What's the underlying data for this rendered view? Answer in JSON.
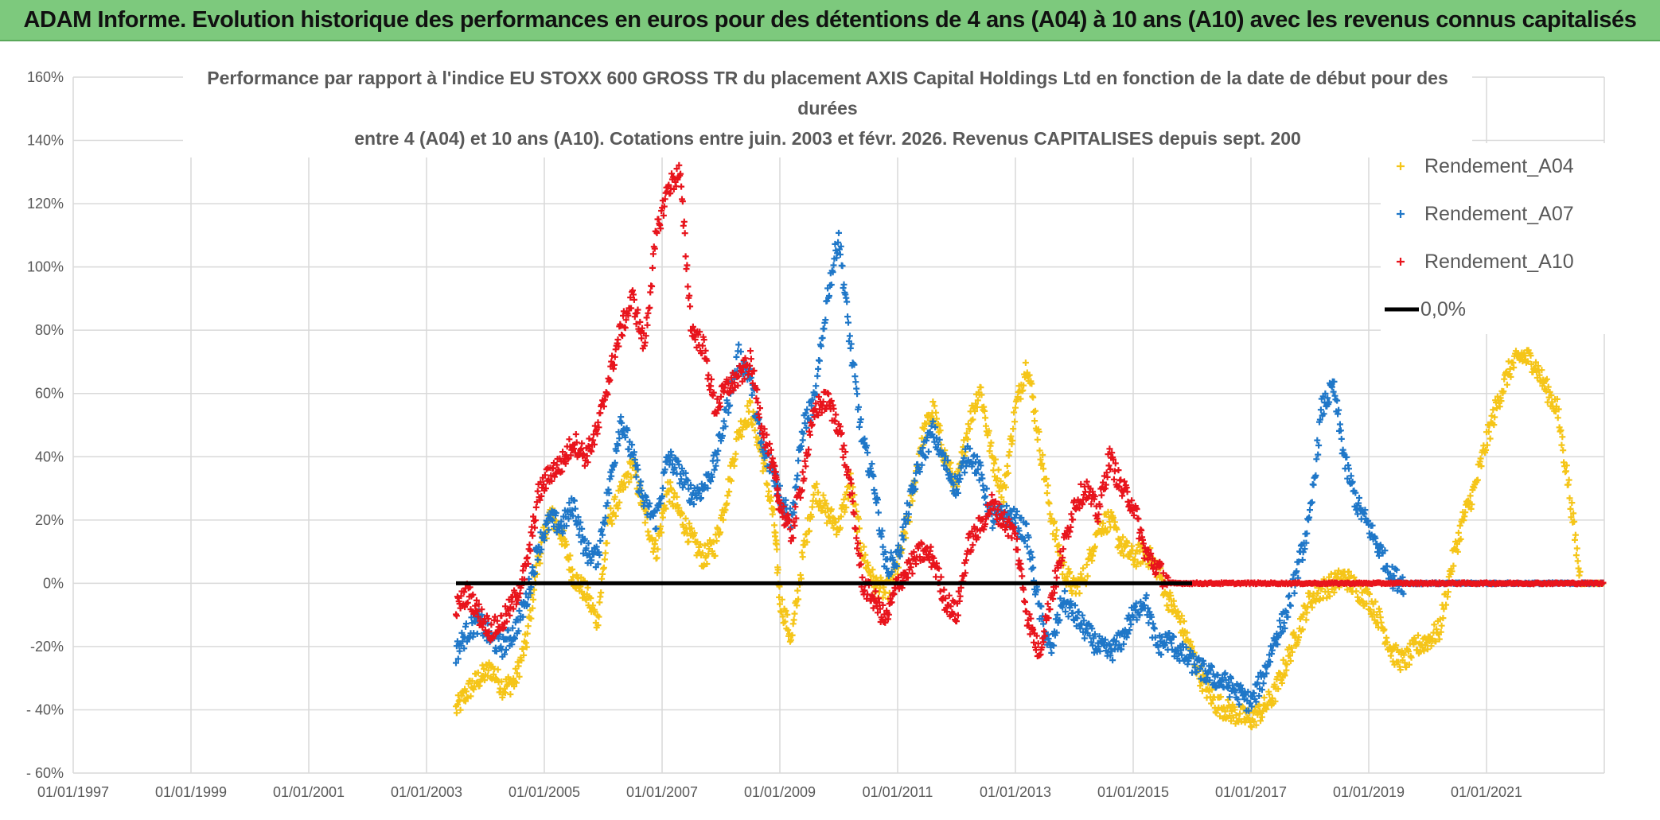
{
  "header": {
    "banner_text": "ADAM Informe. Evolution historique des performances en euros pour des détentions de 4 ans (A04) à 10 ans (A10) avec les revenus connus capitalisés"
  },
  "colors": {
    "banner_bg": "#7dc97d",
    "A04": "#f5c518",
    "A07": "#1f77c8",
    "A10": "#e8141c",
    "zero": "#000000",
    "grid": "#d9d9d9"
  },
  "chart_data": {
    "type": "scatter",
    "title_lines": [
      "Performance par rapport à l'indice EU STOXX 600 GROSS TR  du placement AXIS Capital Holdings Ltd en fonction de la date de début pour des",
      "durées",
      "entre 4 (A04) et 10 ans (A10). Cotations entre juin. 2003 et févr. 2026. Revenus CAPITALISES depuis sept. 200"
    ],
    "xlabel": "",
    "ylabel": "",
    "xlim": [
      1997.0,
      2023.0
    ],
    "ylim": [
      -60,
      160
    ],
    "grid": true,
    "legend_position": "top-right",
    "x_ticks": [
      "01/01/1997",
      "01/01/1999",
      "01/01/2001",
      "01/01/2003",
      "01/01/2005",
      "01/01/2007",
      "01/01/2009",
      "01/01/2011",
      "01/01/2013",
      "01/01/2015",
      "01/01/2017",
      "01/01/2019",
      "01/01/2021"
    ],
    "x_tick_values": [
      1997,
      1999,
      2001,
      2003,
      2005,
      2007,
      2009,
      2011,
      2013,
      2015,
      2017,
      2019,
      2021
    ],
    "y_ticks": [
      "- 60%",
      "- 40%",
      "-20%",
      "0%",
      "20%",
      "40%",
      "60%",
      "80%",
      "100%",
      "120%",
      "140%",
      "160%"
    ],
    "y_tick_values": [
      -60,
      -40,
      -20,
      0,
      20,
      40,
      60,
      80,
      100,
      120,
      140,
      160
    ],
    "series": [
      {
        "name": "Rendement_A04",
        "marker": "+",
        "x": [
          2003.5,
          2003.7,
          2003.9,
          2004.1,
          2004.3,
          2004.5,
          2004.7,
          2004.9,
          2005.1,
          2005.3,
          2005.5,
          2005.7,
          2005.9,
          2006.1,
          2006.3,
          2006.5,
          2006.7,
          2006.9,
          2007.1,
          2007.3,
          2007.5,
          2007.7,
          2007.9,
          2008.1,
          2008.3,
          2008.5,
          2008.7,
          2008.9,
          2009.0,
          2009.2,
          2009.4,
          2009.6,
          2009.8,
          2010.0,
          2010.2,
          2010.4,
          2010.6,
          2010.8,
          2011.0,
          2011.2,
          2011.4,
          2011.6,
          2011.8,
          2012.0,
          2012.2,
          2012.4,
          2012.6,
          2012.8,
          2013.0,
          2013.2,
          2013.4,
          2013.6,
          2013.8,
          2014.0,
          2014.2,
          2014.4,
          2014.6,
          2014.8,
          2015.0,
          2015.2,
          2015.4,
          2015.6,
          2015.8,
          2016.0,
          2016.2,
          2016.4,
          2016.6,
          2016.8,
          2017.0,
          2017.2,
          2017.4,
          2017.6,
          2017.8,
          2018.0,
          2018.2,
          2018.4,
          2018.6,
          2018.8,
          2019.0,
          2019.2,
          2019.4,
          2019.6,
          2019.8,
          2020.0,
          2020.2,
          2020.4,
          2020.6,
          2020.8,
          2021.0,
          2021.2,
          2021.4,
          2021.6,
          2021.8,
          2022.0,
          2022.2,
          2022.4,
          2022.6,
          2022.8
        ],
        "y": [
          -40,
          -34,
          -30,
          -27,
          -33,
          -31,
          -18,
          8,
          22,
          15,
          2,
          -3,
          -12,
          20,
          28,
          38,
          22,
          10,
          30,
          22,
          14,
          8,
          12,
          28,
          48,
          55,
          40,
          20,
          -5,
          -18,
          10,
          30,
          22,
          18,
          32,
          10,
          0,
          -3,
          5,
          22,
          45,
          55,
          40,
          30,
          50,
          62,
          40,
          28,
          55,
          70,
          45,
          22,
          5,
          -2,
          3,
          18,
          20,
          12,
          8,
          10,
          5,
          -5,
          -12,
          -22,
          -32,
          -38,
          -40,
          -42,
          -43,
          -40,
          -35,
          -25,
          -15,
          -5,
          -2,
          0,
          2,
          -2,
          -5,
          -12,
          -22,
          -25,
          -20,
          -18,
          -15,
          5,
          20,
          30,
          45,
          58,
          68,
          72,
          70,
          62,
          55,
          30,
          0,
          0
        ]
      },
      {
        "name": "Rendement_A07",
        "marker": "+",
        "x": [
          2003.5,
          2003.7,
          2003.9,
          2004.1,
          2004.3,
          2004.5,
          2004.7,
          2004.9,
          2005.1,
          2005.3,
          2005.5,
          2005.7,
          2005.9,
          2006.1,
          2006.3,
          2006.5,
          2006.7,
          2006.9,
          2007.1,
          2007.3,
          2007.5,
          2007.7,
          2007.9,
          2008.1,
          2008.3,
          2008.5,
          2008.7,
          2008.9,
          2009.0,
          2009.2,
          2009.4,
          2009.6,
          2009.8,
          2010.0,
          2010.2,
          2010.4,
          2010.6,
          2010.8,
          2011.0,
          2011.2,
          2011.4,
          2011.6,
          2011.8,
          2012.0,
          2012.2,
          2012.4,
          2012.6,
          2012.8,
          2013.0,
          2013.2,
          2013.4,
          2013.6,
          2013.8,
          2014.0,
          2014.2,
          2014.4,
          2014.6,
          2014.8,
          2015.0,
          2015.2,
          2015.4,
          2015.6,
          2015.8,
          2016.0,
          2016.2,
          2016.4,
          2016.6,
          2016.8,
          2017.0,
          2017.2,
          2017.4,
          2017.6,
          2017.8,
          2018.0,
          2018.2,
          2018.4,
          2018.6,
          2018.8,
          2019.0,
          2019.2,
          2019.4,
          2019.6,
          2019.8,
          2020.0,
          2020.2,
          2020.4,
          2020.6,
          2020.8,
          2021.0,
          2021.2,
          2021.4,
          2021.6,
          2021.8,
          2022.0,
          2022.2,
          2022.4,
          2022.6,
          2022.8
        ],
        "y": [
          -22,
          -15,
          -12,
          -18,
          -20,
          -15,
          -5,
          12,
          20,
          18,
          25,
          10,
          8,
          30,
          52,
          40,
          25,
          20,
          40,
          35,
          28,
          30,
          38,
          55,
          72,
          65,
          42,
          35,
          28,
          20,
          50,
          58,
          90,
          110,
          75,
          45,
          32,
          5,
          8,
          25,
          40,
          48,
          38,
          30,
          42,
          35,
          20,
          22,
          20,
          15,
          -8,
          -22,
          -5,
          -10,
          -15,
          -20,
          -22,
          -18,
          -10,
          -5,
          -20,
          -18,
          -22,
          -25,
          -28,
          -30,
          -32,
          -35,
          -38,
          -30,
          -18,
          -10,
          5,
          20,
          55,
          62,
          38,
          25,
          18,
          10,
          2,
          0,
          0,
          0,
          0,
          0,
          0,
          0,
          0,
          0,
          0,
          0,
          0,
          0,
          0,
          0,
          0,
          0
        ]
      },
      {
        "name": "Rendement_A10",
        "marker": "+",
        "x": [
          2003.5,
          2003.7,
          2003.9,
          2004.1,
          2004.3,
          2004.5,
          2004.7,
          2004.9,
          2005.1,
          2005.3,
          2005.5,
          2005.7,
          2005.9,
          2006.1,
          2006.3,
          2006.5,
          2006.7,
          2006.9,
          2007.1,
          2007.3,
          2007.5,
          2007.7,
          2007.9,
          2008.1,
          2008.3,
          2008.5,
          2008.7,
          2008.9,
          2009.0,
          2009.2,
          2009.4,
          2009.6,
          2009.8,
          2010.0,
          2010.2,
          2010.4,
          2010.6,
          2010.8,
          2011.0,
          2011.2,
          2011.4,
          2011.6,
          2011.8,
          2012.0,
          2012.2,
          2012.4,
          2012.6,
          2012.8,
          2013.0,
          2013.2,
          2013.4,
          2013.6,
          2013.8,
          2014.0,
          2014.2,
          2014.4,
          2014.6,
          2014.8,
          2015.0,
          2015.2,
          2015.4,
          2015.6,
          2015.8,
          2016.0,
          2016.2,
          2016.4,
          2016.6,
          2016.8,
          2017.0,
          2017.2,
          2017.4,
          2017.6,
          2017.8,
          2018.0,
          2018.2,
          2018.4,
          2018.6,
          2018.8,
          2019.0,
          2019.2,
          2019.4,
          2019.6,
          2019.8,
          2020.0,
          2020.2,
          2020.4,
          2020.6,
          2020.8,
          2021.0,
          2021.2,
          2021.4,
          2021.6,
          2021.8,
          2022.0,
          2022.2,
          2022.4,
          2022.6,
          2022.8
        ],
        "y": [
          -8,
          -3,
          -10,
          -15,
          -12,
          -5,
          5,
          28,
          35,
          38,
          45,
          40,
          48,
          65,
          80,
          90,
          75,
          110,
          125,
          130,
          80,
          75,
          55,
          62,
          65,
          70,
          50,
          35,
          25,
          15,
          35,
          55,
          58,
          50,
          30,
          0,
          -5,
          -12,
          0,
          5,
          10,
          8,
          -5,
          -10,
          12,
          18,
          25,
          20,
          15,
          -10,
          -22,
          -5,
          10,
          25,
          30,
          22,
          40,
          30,
          25,
          10,
          5,
          0,
          0,
          0,
          0,
          0,
          0,
          0,
          0,
          0,
          0,
          0,
          0,
          0,
          0,
          0,
          0,
          0,
          0,
          0,
          0,
          0,
          0,
          0,
          0,
          0,
          0,
          0,
          0,
          0,
          0,
          0,
          0,
          0,
          0,
          0,
          0,
          0
        ]
      }
    ],
    "reference_line": {
      "name": "0,0%",
      "value": 0,
      "x_start": 2003.5,
      "x_end": 2016.0
    },
    "legend": [
      {
        "label": "Rendement_A04",
        "key": "A04"
      },
      {
        "label": "Rendement_A07",
        "key": "A07"
      },
      {
        "label": "Rendement_A10",
        "key": "A10"
      },
      {
        "label": "0,0%",
        "key": "zero"
      }
    ]
  }
}
